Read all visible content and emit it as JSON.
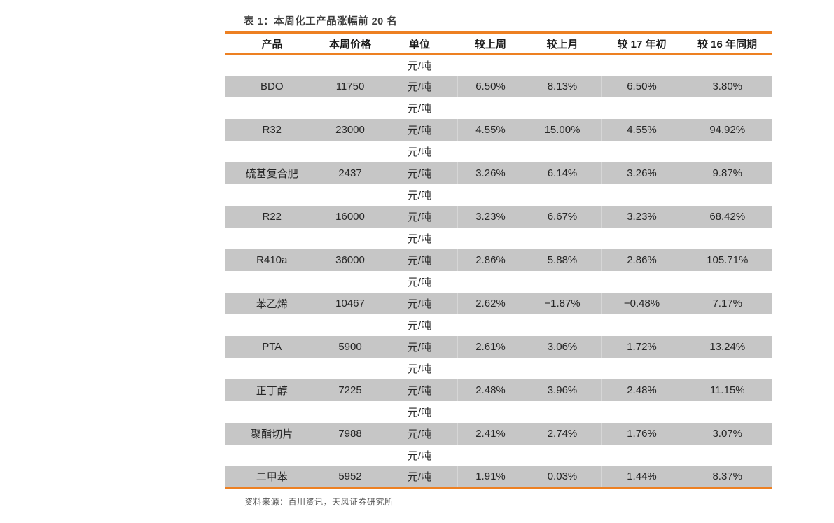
{
  "table_block": {
    "title": "表 1：本周化工产品涨幅前 20 名",
    "source_note": "资料来源：百川资讯，天风证券研究所"
  },
  "table": {
    "columns": [
      "产品",
      "本周价格",
      "单位",
      "较上周",
      "较上月",
      "较 17 年初",
      "较 16 年同期"
    ],
    "rows": [
      {
        "type": "unit-only",
        "unit": "元/吨"
      },
      {
        "type": "data",
        "product": "BDO",
        "price": "11750",
        "unit": "元/吨",
        "vs_last_week": "6.50%",
        "vs_last_month": "8.13%",
        "vs_ytd_2017": "6.50%",
        "vs_2016_yoy": "3.80%"
      },
      {
        "type": "unit-only",
        "unit": "元/吨"
      },
      {
        "type": "data",
        "product": "R32",
        "price": "23000",
        "unit": "元/吨",
        "vs_last_week": "4.55%",
        "vs_last_month": "15.00%",
        "vs_ytd_2017": "4.55%",
        "vs_2016_yoy": "94.92%"
      },
      {
        "type": "unit-only",
        "unit": "元/吨"
      },
      {
        "type": "data",
        "product": "硫基复合肥",
        "price": "2437",
        "unit": "元/吨",
        "vs_last_week": "3.26%",
        "vs_last_month": "6.14%",
        "vs_ytd_2017": "3.26%",
        "vs_2016_yoy": "9.87%"
      },
      {
        "type": "unit-only",
        "unit": "元/吨"
      },
      {
        "type": "data",
        "product": "R22",
        "price": "16000",
        "unit": "元/吨",
        "vs_last_week": "3.23%",
        "vs_last_month": "6.67%",
        "vs_ytd_2017": "3.23%",
        "vs_2016_yoy": "68.42%"
      },
      {
        "type": "unit-only",
        "unit": "元/吨"
      },
      {
        "type": "data",
        "product": "R410a",
        "price": "36000",
        "unit": "元/吨",
        "vs_last_week": "2.86%",
        "vs_last_month": "5.88%",
        "vs_ytd_2017": "2.86%",
        "vs_2016_yoy": "105.71%"
      },
      {
        "type": "unit-only",
        "unit": "元/吨"
      },
      {
        "type": "data",
        "product": "苯乙烯",
        "price": "10467",
        "unit": "元/吨",
        "vs_last_week": "2.62%",
        "vs_last_month": "−1.87%",
        "vs_ytd_2017": "−0.48%",
        "vs_2016_yoy": "7.17%"
      },
      {
        "type": "unit-only",
        "unit": "元/吨"
      },
      {
        "type": "data",
        "product": "PTA",
        "price": "5900",
        "unit": "元/吨",
        "vs_last_week": "2.61%",
        "vs_last_month": "3.06%",
        "vs_ytd_2017": "1.72%",
        "vs_2016_yoy": "13.24%"
      },
      {
        "type": "unit-only",
        "unit": "元/吨"
      },
      {
        "type": "data",
        "product": "正丁醇",
        "price": "7225",
        "unit": "元/吨",
        "vs_last_week": "2.48%",
        "vs_last_month": "3.96%",
        "vs_ytd_2017": "2.48%",
        "vs_2016_yoy": "11.15%"
      },
      {
        "type": "unit-only",
        "unit": "元/吨"
      },
      {
        "type": "data",
        "product": "聚酯切片",
        "price": "7988",
        "unit": "元/吨",
        "vs_last_week": "2.41%",
        "vs_last_month": "2.74%",
        "vs_ytd_2017": "1.76%",
        "vs_2016_yoy": "3.07%"
      },
      {
        "type": "unit-only",
        "unit": "元/吨"
      },
      {
        "type": "data",
        "product": "二甲苯",
        "price": "5952",
        "unit": "元/吨",
        "vs_last_week": "1.91%",
        "vs_last_month": "0.03%",
        "vs_ytd_2017": "1.44%",
        "vs_2016_yoy": "8.37%"
      }
    ]
  },
  "colors": {
    "accent_orange": "#ED8022",
    "row_gray": "#C6C6C6",
    "header_text": "#1A1A1A",
    "body_text": "#262626",
    "title_text": "#3D3D3D",
    "source_text": "#595959"
  }
}
